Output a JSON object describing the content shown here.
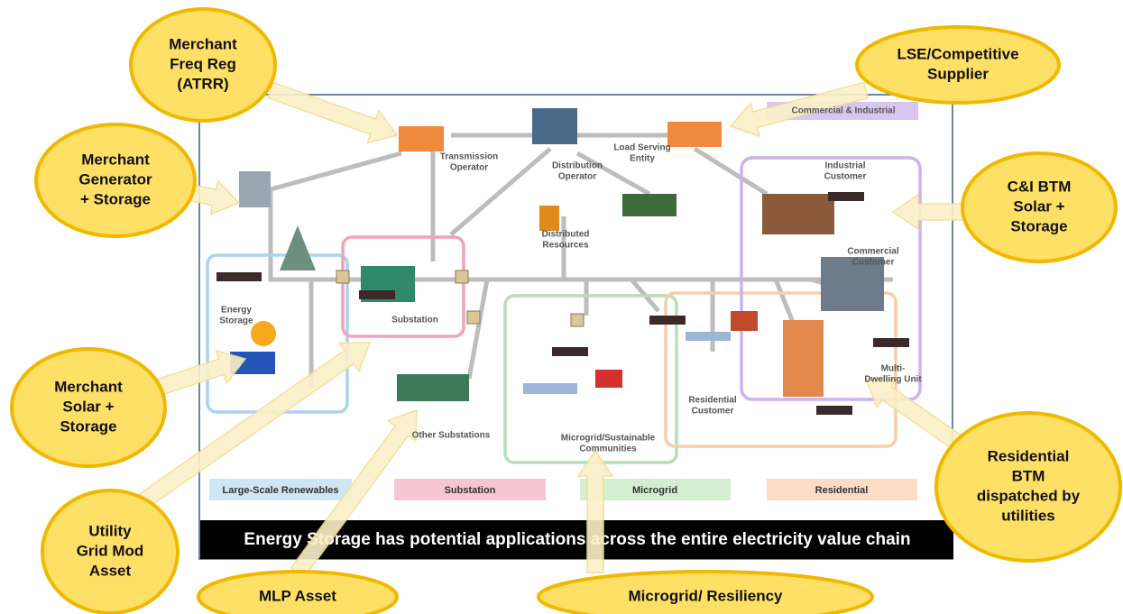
{
  "callouts": [
    {
      "lines": [
        "Merchant",
        "Freq Reg",
        "(ATRR)"
      ]
    },
    {
      "lines": [
        "LSE/Competitive",
        "Supplier"
      ]
    },
    {
      "lines": [
        "Merchant",
        "Generator",
        "+ Storage"
      ]
    },
    {
      "lines": [
        "C&I BTM",
        "Solar +",
        "Storage"
      ]
    },
    {
      "lines": [
        "Merchant",
        "Solar +",
        "Storage"
      ]
    },
    {
      "lines": [
        "Residential",
        "BTM",
        "dispatched by",
        "utilities"
      ]
    },
    {
      "lines": [
        "Utility",
        "Grid Mod",
        "Asset"
      ]
    },
    {
      "lines": [
        "MLP Asset"
      ]
    },
    {
      "lines": [
        "Microgrid/ Resiliency"
      ]
    }
  ],
  "nodes": [
    {
      "lines": [
        "Transmission",
        "Operator"
      ]
    },
    {
      "lines": [
        "Distribution",
        "Operator"
      ]
    },
    {
      "lines": [
        "Load Serving",
        "Entity"
      ]
    },
    {
      "lines": [
        "Commercial & Industrial"
      ]
    },
    {
      "lines": [
        "Industrial",
        "Customer"
      ]
    },
    {
      "lines": [
        "Commercial",
        "Customer"
      ]
    },
    {
      "lines": [
        "Distributed",
        "Resources"
      ]
    },
    {
      "lines": [
        "Energy",
        "Storage"
      ]
    },
    {
      "lines": [
        "Substation"
      ]
    },
    {
      "lines": [
        "Other Substations"
      ]
    },
    {
      "lines": [
        "Microgrid/Sustainable",
        "Communities"
      ]
    },
    {
      "lines": [
        "Residential",
        "Customer"
      ]
    },
    {
      "lines": [
        "Multi-",
        "Dwelling Unit"
      ]
    }
  ],
  "legend": [
    "Large-Scale Renewables",
    "Substation",
    "Microgrid",
    "Residential"
  ],
  "banner": "Energy Storage has potential applications across the entire electricity value chain"
}
